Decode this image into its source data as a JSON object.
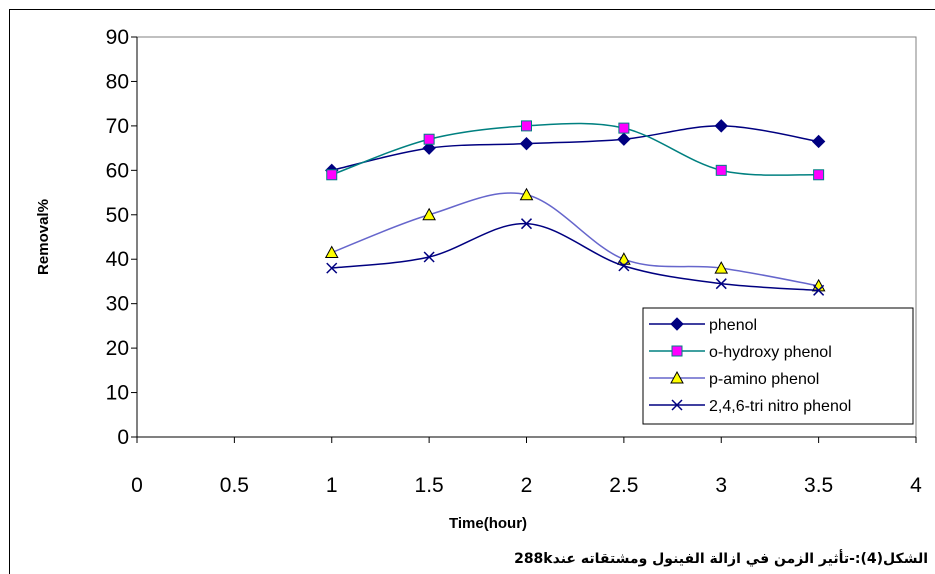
{
  "chart_data": {
    "type": "line",
    "xlabel": "Time(hour)",
    "ylabel": "Removal%",
    "xlim": [
      0,
      4
    ],
    "ylim": [
      0,
      90
    ],
    "xticks": [
      "0",
      "0.5",
      "1",
      "1.5",
      "2",
      "2.5",
      "3",
      "3.5",
      "4"
    ],
    "yticks": [
      "0",
      "10",
      "20",
      "30",
      "40",
      "50",
      "60",
      "70",
      "80",
      "90"
    ],
    "grid": false,
    "smooth": true,
    "legend_position": "bottom-right",
    "series": [
      {
        "name": "phenol",
        "color": "#000080",
        "marker": "diamond",
        "marker_fill": "#000080",
        "x": [
          1,
          1.5,
          2,
          2.5,
          3,
          3.5
        ],
        "y": [
          60,
          65,
          66,
          67,
          70,
          66.5
        ]
      },
      {
        "name": "o-hydroxy phenol",
        "color": "#008080",
        "marker": "square",
        "marker_fill": "#ff00ff",
        "x": [
          1,
          1.5,
          2,
          2.5,
          3,
          3.5
        ],
        "y": [
          59,
          67,
          70,
          69.5,
          60,
          59
        ]
      },
      {
        "name": "p-amino  phenol",
        "color": "#6666cc",
        "marker": "triangle",
        "marker_fill": "#ffff00",
        "x": [
          1,
          1.5,
          2,
          2.5,
          3,
          3.5
        ],
        "y": [
          41.5,
          50,
          54.5,
          40,
          38,
          34
        ]
      },
      {
        "name": "2,4,6-tri nitro phenol",
        "color": "#000080",
        "marker": "x",
        "marker_fill": "none",
        "x": [
          1,
          1.5,
          2,
          2.5,
          3,
          3.5
        ],
        "y": [
          38,
          40.5,
          48,
          38.5,
          34.5,
          33
        ]
      }
    ]
  },
  "caption": "الشكل(4):-تأثير الزمن في ازالة الفينول ومشتقاته عند288k"
}
